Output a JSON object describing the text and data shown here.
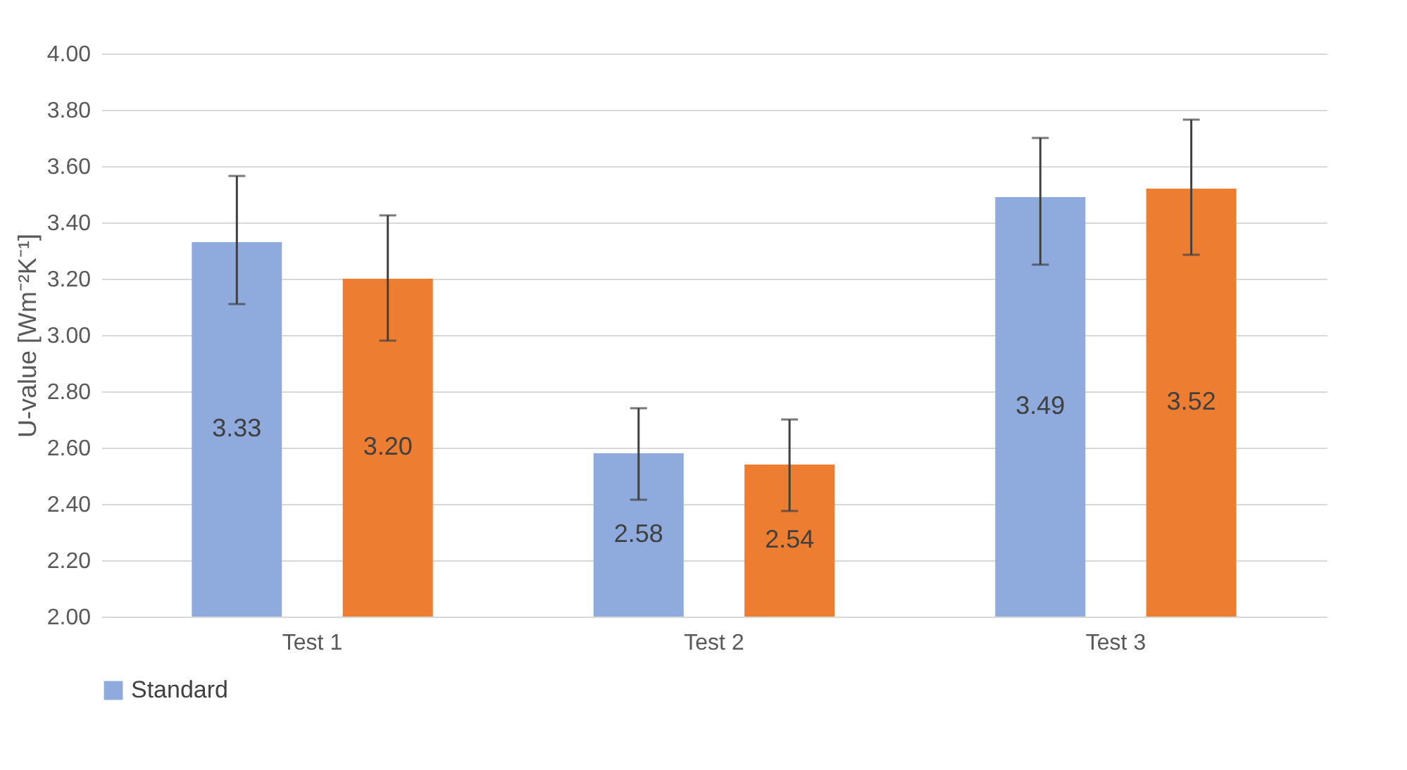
{
  "chart_data": {
    "type": "bar",
    "ylabel": "U-value [Wm⁻²K⁻¹]",
    "categories": [
      "Test 1",
      "Test 2",
      "Test 3"
    ],
    "series": [
      {
        "name": "Standard",
        "color": "#8faadc",
        "values": [
          3.33,
          2.58,
          3.49
        ],
        "value_labels": [
          "3.33",
          "2.58",
          "3.49"
        ],
        "errors": [
          [
            3.11,
            3.565
          ],
          [
            2.415,
            2.74
          ],
          [
            3.25,
            3.7
          ]
        ]
      },
      {
        "color": "#ed7d31",
        "values": [
          3.2,
          2.54,
          3.52
        ],
        "value_labels": [
          "3.20",
          "2.54",
          "3.52"
        ],
        "errors": [
          [
            2.98,
            3.425
          ],
          [
            2.375,
            2.7
          ],
          [
            3.285,
            3.765
          ]
        ]
      }
    ],
    "ylim": [
      2.0,
      4.0
    ],
    "yticks": [
      {
        "value": 2.0,
        "label": "2.00"
      },
      {
        "value": 2.2,
        "label": "2.20"
      },
      {
        "value": 2.4,
        "label": "2.40"
      },
      {
        "value": 2.6,
        "label": "2.60"
      },
      {
        "value": 2.8,
        "label": "2.80"
      },
      {
        "value": 3.0,
        "label": "3.00"
      },
      {
        "value": 3.2,
        "label": "3.20"
      },
      {
        "value": 3.4,
        "label": "3.40"
      },
      {
        "value": 3.6,
        "label": "3.60"
      },
      {
        "value": 3.8,
        "label": "3.80"
      },
      {
        "value": 4.0,
        "label": "4.00"
      }
    ],
    "grid": "y",
    "legend": "bottom"
  }
}
